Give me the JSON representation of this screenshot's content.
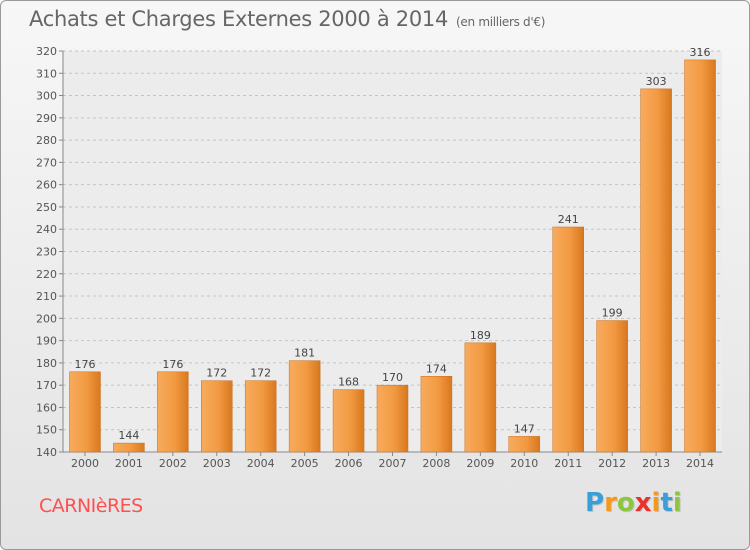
{
  "chart_data": {
    "type": "bar",
    "title": "Achats et Charges Externes 2000 à 2014",
    "subtitle": "(en milliers d'€)",
    "categories": [
      "2000",
      "2001",
      "2002",
      "2003",
      "2004",
      "2005",
      "2006",
      "2007",
      "2008",
      "2009",
      "2010",
      "2011",
      "2012",
      "2013",
      "2014"
    ],
    "values": [
      176,
      144,
      176,
      172,
      172,
      181,
      168,
      170,
      174,
      189,
      147,
      241,
      199,
      303,
      316
    ],
    "ylim": [
      140,
      320
    ],
    "yticks": [
      140,
      150,
      160,
      170,
      180,
      190,
      200,
      210,
      220,
      230,
      240,
      250,
      260,
      270,
      280,
      290,
      300,
      310,
      320
    ],
    "grid": true,
    "bar_color": "#f0913a"
  },
  "commune": "CARNIèRES",
  "logo": {
    "letters": [
      "P",
      "r",
      "o",
      "x",
      "i",
      "t",
      "i"
    ],
    "colors": [
      "#3a9fd8",
      "#f39a1e",
      "#8cc63f",
      "#e8322b",
      "#f39a1e",
      "#3a9fd8",
      "#8cc63f"
    ]
  }
}
